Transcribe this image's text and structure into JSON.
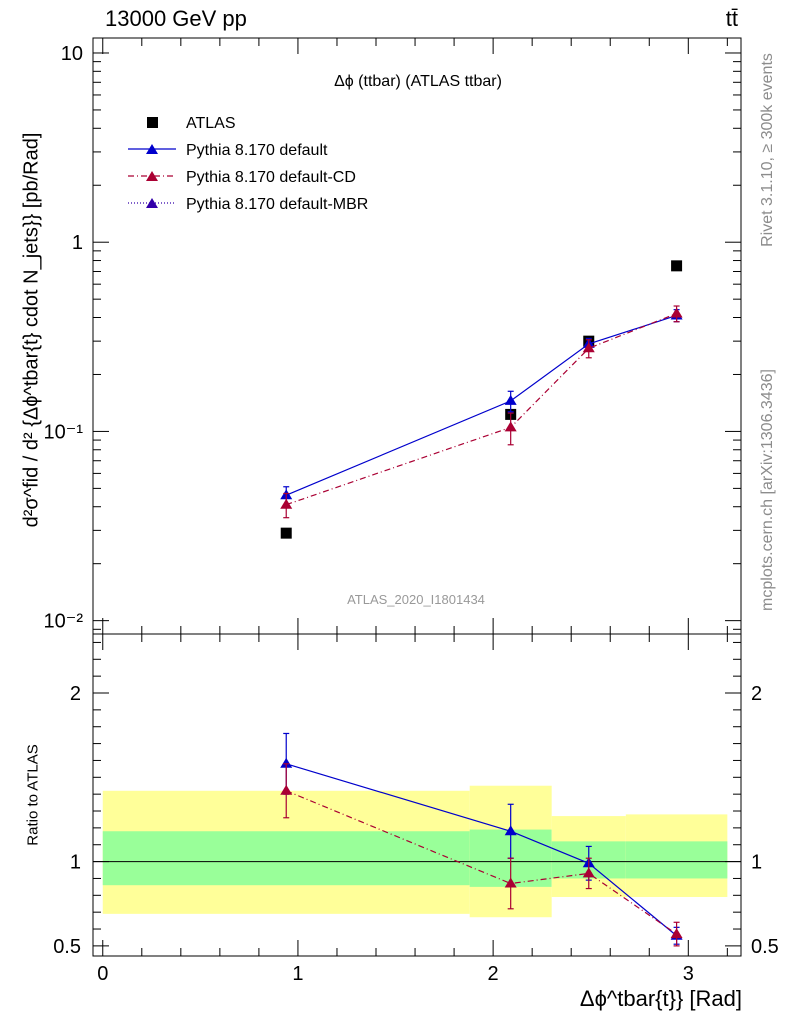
{
  "header": {
    "left": "13000 GeV pp",
    "right": "tt̄"
  },
  "side_labels": {
    "rivet": "Rivet 3.1.10, ≥ 300k events",
    "mcplots": "mcplots.cern.ch [arXiv:1306.3436]"
  },
  "colors": {
    "data": "#000000",
    "default": "#0000cc",
    "cd": "#aa0033",
    "mbr": "#3300aa",
    "band_outer": "#ffff99",
    "band_inner": "#99ff99"
  },
  "chart_data": [
    {
      "type": "scatter",
      "title": "Δϕ (ttbar) (ATLAS ttbar)",
      "ylabel": "d²σ^fid / d² {Δϕ^tbar{t} cdot N_jets}} [pb/Rad]",
      "watermark": "ATLAS_2020_I1801434",
      "yscale": "log",
      "ylim": [
        0.0085,
        12
      ],
      "xlim": [
        -0.05,
        3.27
      ],
      "ytick_labels": [
        "10",
        "1",
        "10⁻¹",
        "10⁻²"
      ],
      "legend_position": "top-left",
      "series": [
        {
          "name": "ATLAS",
          "style": "square",
          "color": "#000000",
          "x": [
            0.94,
            2.09,
            2.49,
            2.94
          ],
          "y": [
            0.029,
            0.123,
            0.3,
            0.75
          ]
        },
        {
          "name": "Pythia 8.170 default",
          "style": "solid",
          "color": "#0000cc",
          "x": [
            0.94,
            2.09,
            2.49,
            2.94
          ],
          "y": [
            0.046,
            0.145,
            0.29,
            0.41
          ],
          "yerr": [
            0.005,
            0.018,
            0.02,
            0.03
          ]
        },
        {
          "name": "Pythia 8.170 default-CD",
          "style": "dashdot",
          "color": "#aa0033",
          "x": [
            0.94,
            2.09,
            2.49,
            2.94
          ],
          "y": [
            0.041,
            0.105,
            0.275,
            0.42
          ],
          "yerr": [
            0.006,
            0.02,
            0.03,
            0.04
          ]
        },
        {
          "name": "Pythia 8.170 default-MBR",
          "style": "dotted",
          "color": "#3300aa",
          "x": [],
          "y": []
        }
      ]
    },
    {
      "type": "scatter",
      "ylabel": "Ratio to ATLAS",
      "xlabel": "Δϕ^tbar{t}} [Rad]",
      "ylim": [
        0.44,
        2.35
      ],
      "xlim": [
        -0.05,
        3.27
      ],
      "yticks": [
        0.5,
        1,
        2
      ],
      "ytick_labels": [
        "0.5",
        "1",
        "2"
      ],
      "xticks": [
        0,
        1,
        2,
        3
      ],
      "xtick_labels": [
        "0",
        "1",
        "2",
        "3"
      ],
      "bands": [
        {
          "x0": 0.0,
          "x1": 1.88,
          "outer": [
            0.69,
            1.42
          ],
          "inner": [
            0.86,
            1.18
          ]
        },
        {
          "x0": 1.88,
          "x1": 2.3,
          "outer": [
            0.67,
            1.45
          ],
          "inner": [
            0.85,
            1.19
          ]
        },
        {
          "x0": 2.3,
          "x1": 2.68,
          "outer": [
            0.79,
            1.27
          ],
          "inner": [
            0.9,
            1.12
          ]
        },
        {
          "x0": 2.68,
          "x1": 3.2,
          "outer": [
            0.79,
            1.28
          ],
          "inner": [
            0.9,
            1.12
          ]
        }
      ],
      "series": [
        {
          "name": "Pythia 8.170 default",
          "color": "#0000cc",
          "style": "solid",
          "x": [
            0.94,
            2.09,
            2.49,
            2.94
          ],
          "y": [
            1.58,
            1.18,
            0.99,
            0.56
          ],
          "yerr": [
            0.18,
            0.16,
            0.1,
            0.05
          ]
        },
        {
          "name": "Pythia 8.170 default-CD",
          "color": "#aa0033",
          "style": "dashdot",
          "x": [
            0.94,
            2.09,
            2.49,
            2.94
          ],
          "y": [
            1.42,
            0.87,
            0.93,
            0.57
          ],
          "yerr": [
            0.16,
            0.15,
            0.09,
            0.07
          ]
        }
      ]
    }
  ]
}
